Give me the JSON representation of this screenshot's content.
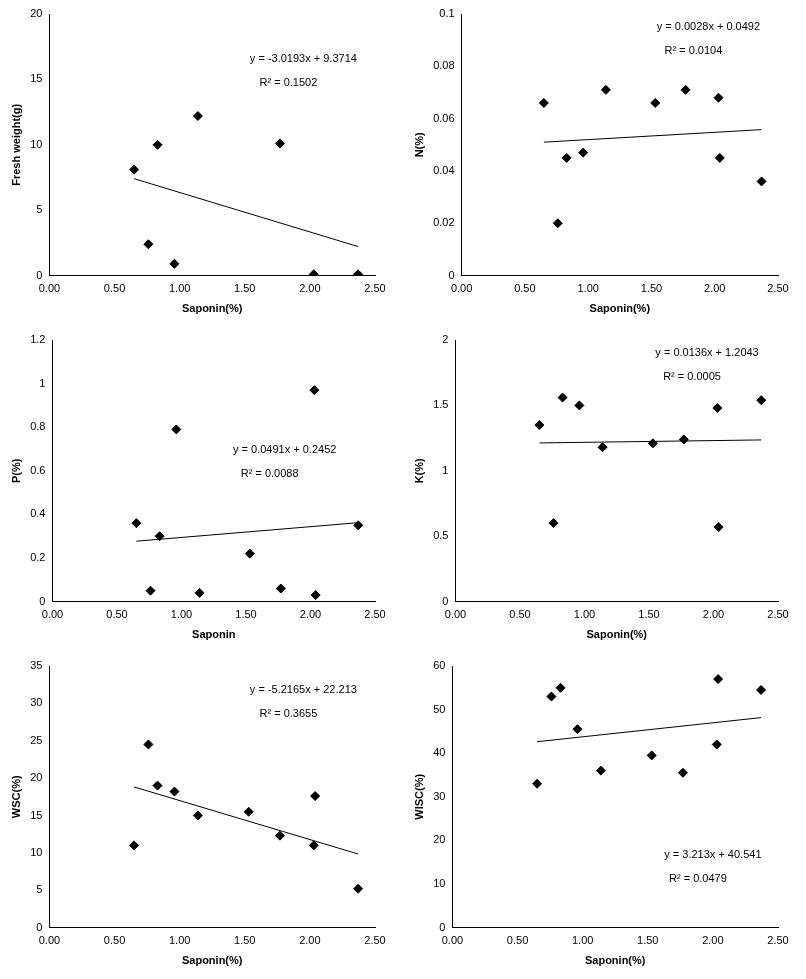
{
  "chart_data": [
    {
      "type": "scatter",
      "x_label": "Saponin(%)",
      "y_label": "Fresh weight(g)",
      "xlim": [
        0,
        2.5
      ],
      "xticks": [
        {
          "value": 0,
          "label": "0.00"
        },
        {
          "value": 0.5,
          "label": "0.50"
        },
        {
          "value": 1,
          "label": "1.00"
        },
        {
          "value": 1.5,
          "label": "1.50"
        },
        {
          "value": 2,
          "label": "2.00"
        },
        {
          "value": 2.5,
          "label": "2.50"
        }
      ],
      "ylim": [
        0,
        20
      ],
      "yticks": [
        0,
        5,
        10,
        15,
        20
      ],
      "grid": false,
      "annotations": [
        "y = -3.0193x + 9.3714",
        "R² = 0.1502"
      ],
      "series": [
        {
          "type": "scatter",
          "marker": "diamond",
          "color": "#000000",
          "x": [
            0.65,
            0.76,
            0.83,
            0.96,
            1.14,
            1.77,
            2.03,
            2.37
          ],
          "values": [
            8.1,
            2.4,
            10.0,
            0.9,
            12.2,
            10.1,
            0.1,
            0.1
          ]
        },
        {
          "type": "line",
          "line_style": "solid",
          "color": "#000000",
          "x": [
            0.65,
            2.37
          ],
          "values": [
            7.41,
            2.22
          ]
        }
      ]
    },
    {
      "type": "scatter",
      "x_label": "Saponin(%)",
      "y_label": "N(%)",
      "xlim": [
        0,
        2.5
      ],
      "xticks": [
        {
          "value": 0,
          "label": "0.00"
        },
        {
          "value": 0.5,
          "label": "0.50"
        },
        {
          "value": 1,
          "label": "1.00"
        },
        {
          "value": 1.5,
          "label": "1.50"
        },
        {
          "value": 2,
          "label": "2.00"
        },
        {
          "value": 2.5,
          "label": "2.50"
        }
      ],
      "ylim": [
        0,
        0.1
      ],
      "yticks": [
        0,
        0.02,
        0.04,
        0.06,
        0.08,
        0.1
      ],
      "grid": false,
      "annotations": [
        "y = 0.0028x + 0.0492",
        "R² = 0.0104"
      ],
      "series": [
        {
          "type": "scatter",
          "marker": "diamond",
          "color": "#000000",
          "x": [
            0.65,
            0.76,
            0.83,
            0.96,
            1.14,
            1.53,
            1.77,
            2.03,
            2.04,
            2.37
          ],
          "values": [
            0.066,
            0.02,
            0.045,
            0.047,
            0.071,
            0.066,
            0.071,
            0.068,
            0.045,
            0.036
          ]
        },
        {
          "type": "line",
          "line_style": "solid",
          "color": "#000000",
          "x": [
            0.65,
            2.37
          ],
          "values": [
            0.051,
            0.0558
          ]
        }
      ]
    },
    {
      "type": "scatter",
      "x_label": "Saponin",
      "y_label": "P(%)",
      "xlim": [
        0,
        2.5
      ],
      "xticks": [
        {
          "value": 0,
          "label": "0.00"
        },
        {
          "value": 0.5,
          "label": "0.50"
        },
        {
          "value": 1,
          "label": "1.00"
        },
        {
          "value": 1.5,
          "label": "1.50"
        },
        {
          "value": 2,
          "label": "2.00"
        },
        {
          "value": 2.5,
          "label": "2.50"
        }
      ],
      "ylim": [
        0,
        1.2
      ],
      "yticks": [
        0,
        0.2,
        0.4,
        0.6,
        0.8,
        1,
        1.2
      ],
      "grid": false,
      "annotations": [
        "y = 0.0491x + 0.2452",
        "R² = 0.0088"
      ],
      "series": [
        {
          "type": "scatter",
          "marker": "diamond",
          "color": "#000000",
          "x": [
            0.65,
            0.76,
            0.83,
            0.96,
            1.14,
            1.53,
            1.77,
            2.03,
            2.04,
            2.37
          ],
          "values": [
            0.36,
            0.05,
            0.3,
            0.79,
            0.04,
            0.22,
            0.06,
            0.97,
            0.03,
            0.35
          ]
        },
        {
          "type": "line",
          "line_style": "solid",
          "color": "#000000",
          "x": [
            0.65,
            2.37
          ],
          "values": [
            0.277,
            0.362
          ]
        }
      ]
    },
    {
      "type": "scatter",
      "x_label": "Saponin(%)",
      "y_label": "K(%)",
      "xlim": [
        0,
        2.5
      ],
      "xticks": [
        {
          "value": 0,
          "label": "0.00"
        },
        {
          "value": 0.5,
          "label": "0.50"
        },
        {
          "value": 1,
          "label": "1.00"
        },
        {
          "value": 1.5,
          "label": "1.50"
        },
        {
          "value": 2,
          "label": "2.00"
        },
        {
          "value": 2.5,
          "label": "2.50"
        }
      ],
      "ylim": [
        0,
        2
      ],
      "yticks": [
        0,
        0.5,
        1,
        1.5,
        2
      ],
      "grid": false,
      "annotations": [
        "y = 0.0136x + 1.2043",
        "R² = 0.0005"
      ],
      "series": [
        {
          "type": "scatter",
          "marker": "diamond",
          "color": "#000000",
          "x": [
            0.65,
            0.76,
            0.83,
            0.96,
            1.14,
            1.53,
            1.77,
            2.03,
            2.04,
            2.37
          ],
          "values": [
            1.35,
            0.6,
            1.56,
            1.5,
            1.18,
            1.21,
            1.24,
            1.48,
            0.57,
            1.54
          ]
        },
        {
          "type": "line",
          "line_style": "solid",
          "color": "#000000",
          "x": [
            0.65,
            2.37
          ],
          "values": [
            1.213,
            1.236
          ]
        }
      ]
    },
    {
      "type": "scatter",
      "x_label": "Saponin(%)",
      "y_label": "WSC(%)",
      "xlim": [
        0,
        2.5
      ],
      "xticks": [
        {
          "value": 0,
          "label": "0.00"
        },
        {
          "value": 0.5,
          "label": "0.50"
        },
        {
          "value": 1,
          "label": "1.00"
        },
        {
          "value": 1.5,
          "label": "1.50"
        },
        {
          "value": 2,
          "label": "2.00"
        },
        {
          "value": 2.5,
          "label": "2.50"
        }
      ],
      "ylim": [
        0,
        35
      ],
      "yticks": [
        0,
        5,
        10,
        15,
        20,
        25,
        30,
        35
      ],
      "grid": false,
      "annotations": [
        "y = -5.2165x + 22.213",
        "R² = 0.3655"
      ],
      "series": [
        {
          "type": "scatter",
          "marker": "diamond",
          "color": "#000000",
          "x": [
            0.65,
            0.76,
            0.83,
            0.96,
            1.14,
            1.53,
            1.77,
            2.03,
            2.04,
            2.37
          ],
          "values": [
            11.0,
            24.5,
            19.0,
            18.2,
            15.0,
            15.5,
            12.3,
            11.0,
            17.6,
            5.2
          ]
        },
        {
          "type": "line",
          "line_style": "solid",
          "color": "#000000",
          "x": [
            0.65,
            2.37
          ],
          "values": [
            18.82,
            9.85
          ]
        }
      ]
    },
    {
      "type": "scatter",
      "x_label": "Saponin(%)",
      "y_label": "WISC(%)",
      "xlim": [
        0,
        2.5
      ],
      "xticks": [
        {
          "value": 0,
          "label": "0.00"
        },
        {
          "value": 0.5,
          "label": "0.50"
        },
        {
          "value": 1,
          "label": "1.00"
        },
        {
          "value": 1.5,
          "label": "1.50"
        },
        {
          "value": 2,
          "label": "2.00"
        },
        {
          "value": 2.5,
          "label": "2.50"
        }
      ],
      "ylim": [
        0,
        60
      ],
      "yticks": [
        0,
        10,
        20,
        30,
        40,
        50,
        60
      ],
      "grid": false,
      "annotations": [
        "y = 3.213x + 40.541",
        "R² = 0.0479"
      ],
      "series": [
        {
          "type": "scatter",
          "marker": "diamond",
          "color": "#000000",
          "x": [
            0.65,
            0.76,
            0.83,
            0.96,
            1.14,
            1.53,
            1.77,
            2.03,
            2.04,
            2.37
          ],
          "values": [
            33,
            53,
            55,
            45.5,
            36,
            39.5,
            35.5,
            42,
            57,
            54.5
          ]
        },
        {
          "type": "line",
          "line_style": "solid",
          "color": "#000000",
          "x": [
            0.65,
            2.37
          ],
          "values": [
            42.63,
            48.16
          ]
        }
      ]
    }
  ]
}
